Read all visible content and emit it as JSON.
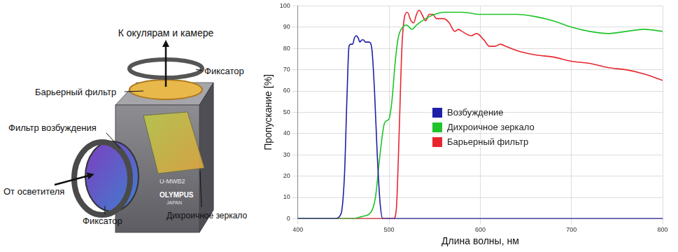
{
  "chart_data": {
    "type": "line",
    "x_label": "Длина волны, нм",
    "y_label": "Пропускание [%]",
    "xlim": [
      400,
      800
    ],
    "xticks": [
      400,
      500,
      600,
      700,
      800
    ],
    "ylim": [
      0,
      100
    ],
    "yticks": [
      0,
      10,
      20,
      30,
      40,
      50,
      60,
      70,
      80,
      90,
      100
    ],
    "grid": true,
    "legend": "center",
    "series": [
      {
        "name": "Возбуждение",
        "color": "#1f1fa8",
        "x": [
          400,
          440,
          447,
          451,
          454,
          456,
          458,
          460,
          462,
          464,
          466,
          468,
          470,
          472,
          474,
          478,
          481,
          484,
          487,
          490,
          493,
          800
        ],
        "values": [
          0,
          0,
          2,
          20,
          60,
          81,
          82,
          82,
          85,
          86,
          85,
          83,
          84,
          84,
          83,
          83,
          80,
          60,
          30,
          8,
          0,
          0
        ]
      },
      {
        "name": "Дихроичное зеркало",
        "color": "#1fc42a",
        "x": [
          400,
          460,
          470,
          480,
          485,
          490,
          495,
          500,
          503,
          507,
          510,
          515,
          519,
          525,
          530,
          540,
          550,
          560,
          580,
          600,
          640,
          660,
          680,
          700,
          720,
          740,
          760,
          780,
          800
        ],
        "values": [
          0,
          0,
          1,
          3,
          10,
          30,
          45,
          47,
          55,
          75,
          85,
          90,
          91,
          89,
          91,
          94,
          96,
          97,
          97,
          96,
          96,
          95,
          93,
          90,
          88,
          87,
          88,
          89,
          88
        ]
      },
      {
        "name": "Барьерный фильтр",
        "color": "#e8262f",
        "x": [
          400,
          505,
          508,
          511,
          514,
          517,
          520,
          524,
          527,
          530,
          533,
          536,
          540,
          544,
          548,
          552,
          560,
          566,
          572,
          576,
          580,
          590,
          596,
          604,
          610,
          616,
          622,
          628,
          640,
          660,
          680,
          700,
          720,
          740,
          760,
          780,
          800
        ],
        "values": [
          0,
          0,
          5,
          40,
          80,
          95,
          97,
          93,
          92,
          96,
          98,
          96,
          93,
          96,
          96,
          94,
          94,
          92,
          88,
          89,
          88,
          86,
          87,
          84,
          81,
          81,
          82,
          81,
          79,
          77,
          76,
          74,
          73,
          71,
          70,
          68,
          65
        ]
      }
    ]
  },
  "diagram": {
    "output": "К окулярам и камере",
    "top_retainer": "Фиксатор",
    "barrier_filter": "Барьерный фильтр",
    "excitation_filter": "Фильтр возбуждения",
    "input": "От осветителя",
    "bottom_retainer": "Фиксатор",
    "dichroic_mirror": "Дихроичное зеркало",
    "cube_labels": [
      "U-MWB2",
      "OLYMPUS",
      "JAPAN"
    ]
  }
}
